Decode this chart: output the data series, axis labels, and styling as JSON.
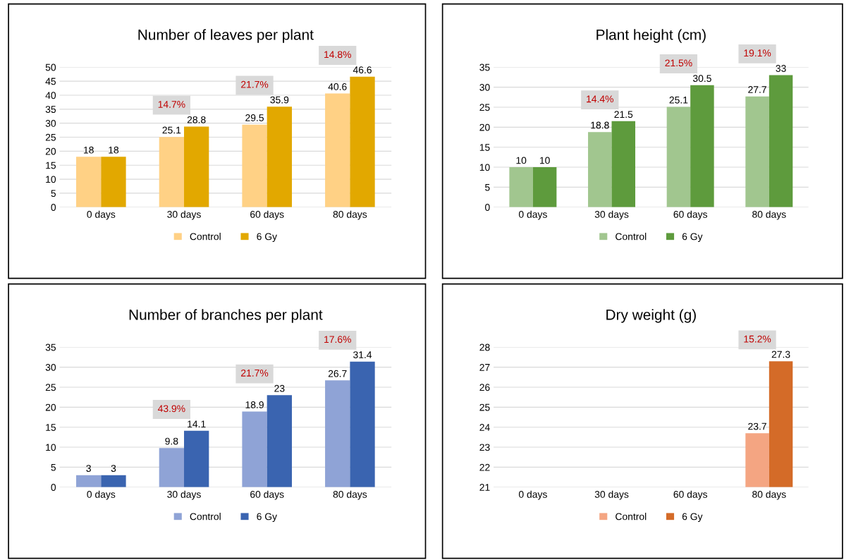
{
  "chart_data": [
    {
      "type": "bar",
      "title": "Number of leaves per plant",
      "categories": [
        "0 days",
        "30 days",
        "60 days",
        "80 days"
      ],
      "series": [
        {
          "name": "Control",
          "color": "#ffd185",
          "values": [
            18,
            25.1,
            29.5,
            40.6
          ]
        },
        {
          "name": "6 Gy",
          "color": "#e2a800",
          "values": [
            18,
            28.8,
            35.9,
            46.6
          ]
        }
      ],
      "ylim": [
        0,
        50
      ],
      "yticks": [
        0,
        5,
        10,
        15,
        20,
        25,
        30,
        35,
        40,
        45,
        50
      ],
      "grid": "y",
      "legend": "bottom",
      "data_labels": true,
      "annotations": [
        "14.7%",
        "21.7%",
        "14.8%"
      ]
    },
    {
      "type": "bar",
      "title": "Plant height (cm)",
      "categories": [
        "0 days",
        "30 days",
        "60 days",
        "80 days"
      ],
      "series": [
        {
          "name": "Control",
          "color": "#a1c68f",
          "values": [
            10,
            18.8,
            25.1,
            27.7
          ]
        },
        {
          "name": "6 Gy",
          "color": "#5e9b3d",
          "values": [
            10,
            21.5,
            30.5,
            33
          ]
        }
      ],
      "ylim": [
        0,
        35
      ],
      "yticks": [
        0,
        5,
        10,
        15,
        20,
        25,
        30,
        35
      ],
      "grid": "y",
      "legend": "bottom",
      "data_labels": true,
      "annotations": [
        "14.4%",
        "21.5%",
        "19.1%"
      ]
    },
    {
      "type": "bar",
      "title": "Number of branches per plant",
      "categories": [
        "0 days",
        "30 days",
        "60 days",
        "80 days"
      ],
      "series": [
        {
          "name": "Control",
          "color": "#8fa3d6",
          "values": [
            3,
            9.8,
            18.9,
            26.7
          ]
        },
        {
          "name": "6 Gy",
          "color": "#3a64b0",
          "values": [
            3,
            14.1,
            23,
            31.4
          ]
        }
      ],
      "ylim": [
        0,
        35
      ],
      "yticks": [
        0,
        5,
        10,
        15,
        20,
        25,
        30,
        35
      ],
      "grid": "y",
      "legend": "bottom",
      "data_labels": true,
      "annotations": [
        "43.9%",
        "21.7%",
        "17.6%"
      ]
    },
    {
      "type": "bar",
      "title": "Dry weight (g)",
      "categories": [
        "0 days",
        "30 days",
        "60 days",
        "80 days"
      ],
      "series": [
        {
          "name": "Control",
          "color": "#f4a582",
          "values": [
            null,
            null,
            null,
            23.7
          ]
        },
        {
          "name": "6 Gy",
          "color": "#d46b28",
          "values": [
            null,
            null,
            null,
            27.3
          ]
        }
      ],
      "ylim": [
        21,
        28
      ],
      "yticks": [
        21,
        22,
        23,
        24,
        25,
        26,
        27,
        28
      ],
      "grid": "y",
      "legend": "bottom",
      "data_labels": true,
      "annotations": [
        "15.2%"
      ]
    }
  ]
}
